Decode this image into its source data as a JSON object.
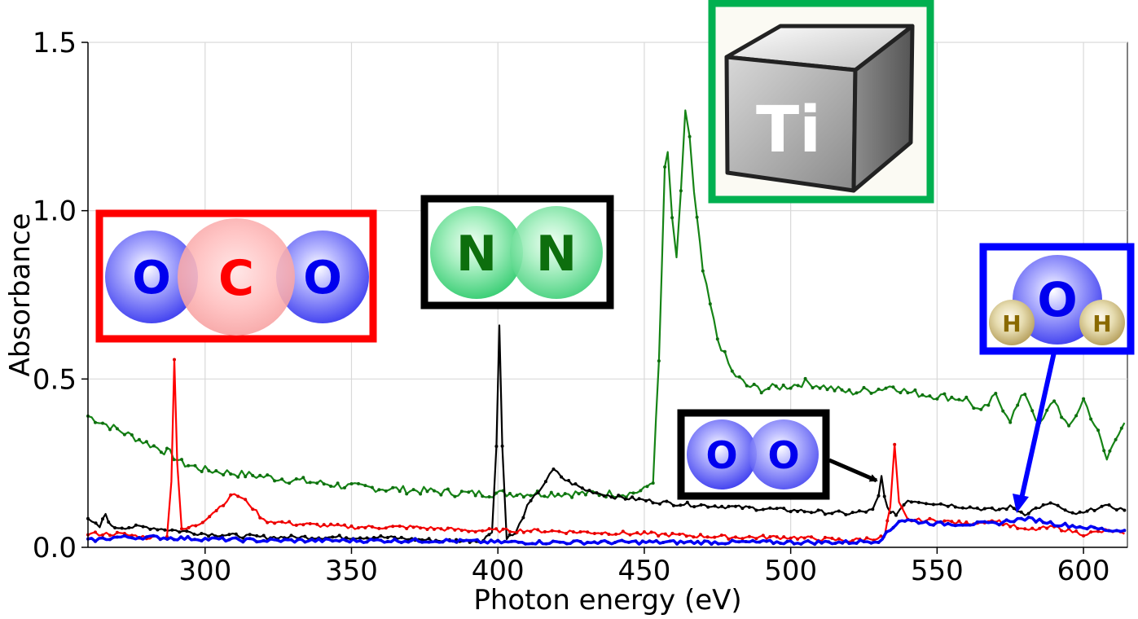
{
  "chart_data": {
    "type": "line",
    "title": "",
    "xlabel": "Photon energy (eV)",
    "ylabel": "Absorbance",
    "xlim": [
      260,
      615
    ],
    "ylim": [
      0.0,
      1.5
    ],
    "xticks": [
      300,
      350,
      400,
      450,
      500,
      550,
      600
    ],
    "yticks": [
      "0.0",
      "0.5",
      "1.0",
      "1.5"
    ],
    "grid": true,
    "legend": "molecule icons",
    "series": [
      {
        "id": "ti",
        "color": "#168416",
        "marker_color": "#0f6f0f",
        "values": [
          [
            260,
            0.39
          ],
          [
            265,
            0.37
          ],
          [
            270,
            0.35
          ],
          [
            275,
            0.33
          ],
          [
            280,
            0.31
          ],
          [
            285,
            0.29
          ],
          [
            288,
            0.28
          ],
          [
            292,
            0.25
          ],
          [
            300,
            0.23
          ],
          [
            310,
            0.22
          ],
          [
            320,
            0.21
          ],
          [
            330,
            0.2
          ],
          [
            350,
            0.18
          ],
          [
            370,
            0.17
          ],
          [
            390,
            0.16
          ],
          [
            410,
            0.16
          ],
          [
            430,
            0.16
          ],
          [
            445,
            0.16
          ],
          [
            450,
            0.17
          ],
          [
            453,
            0.2
          ],
          [
            455,
            0.55
          ],
          [
            457,
            1.12
          ],
          [
            458,
            1.17
          ],
          [
            459.5,
            0.98
          ],
          [
            461,
            0.85
          ],
          [
            462.5,
            1.05
          ],
          [
            464,
            1.3
          ],
          [
            465.5,
            1.22
          ],
          [
            467,
            1.05
          ],
          [
            470,
            0.82
          ],
          [
            475,
            0.62
          ],
          [
            480,
            0.52
          ],
          [
            485,
            0.48
          ],
          [
            490,
            0.47
          ],
          [
            500,
            0.48
          ],
          [
            505,
            0.49
          ],
          [
            510,
            0.48
          ],
          [
            520,
            0.46
          ],
          [
            530,
            0.47
          ],
          [
            535,
            0.48
          ],
          [
            540,
            0.46
          ],
          [
            550,
            0.45
          ],
          [
            560,
            0.44
          ],
          [
            565,
            0.4
          ],
          [
            570,
            0.45
          ],
          [
            575,
            0.38
          ],
          [
            580,
            0.46
          ],
          [
            585,
            0.36
          ],
          [
            590,
            0.44
          ],
          [
            595,
            0.35
          ],
          [
            600,
            0.44
          ],
          [
            605,
            0.34
          ],
          [
            608,
            0.26
          ],
          [
            611,
            0.33
          ],
          [
            614,
            0.37
          ]
        ]
      },
      {
        "id": "n2",
        "color": "#000000",
        "marker_color": "#000000",
        "values": [
          [
            260,
            0.08
          ],
          [
            264,
            0.06
          ],
          [
            266,
            0.1
          ],
          [
            268,
            0.06
          ],
          [
            280,
            0.06
          ],
          [
            290,
            0.05
          ],
          [
            300,
            0.04
          ],
          [
            320,
            0.03
          ],
          [
            340,
            0.03
          ],
          [
            360,
            0.03
          ],
          [
            380,
            0.02
          ],
          [
            395,
            0.02
          ],
          [
            398,
            0.05
          ],
          [
            399.5,
            0.3
          ],
          [
            400.5,
            0.66
          ],
          [
            401.5,
            0.3
          ],
          [
            403,
            0.03
          ],
          [
            406,
            0.04
          ],
          [
            410,
            0.12
          ],
          [
            415,
            0.18
          ],
          [
            419,
            0.23
          ],
          [
            423,
            0.2
          ],
          [
            430,
            0.17
          ],
          [
            440,
            0.15
          ],
          [
            460,
            0.13
          ],
          [
            480,
            0.12
          ],
          [
            500,
            0.11
          ],
          [
            520,
            0.1
          ],
          [
            528,
            0.11
          ],
          [
            530,
            0.15
          ],
          [
            531,
            0.21
          ],
          [
            532,
            0.15
          ],
          [
            534,
            0.1
          ],
          [
            536,
            0.1
          ],
          [
            540,
            0.14
          ],
          [
            550,
            0.13
          ],
          [
            560,
            0.12
          ],
          [
            570,
            0.11
          ],
          [
            575,
            0.12
          ],
          [
            580,
            0.1
          ],
          [
            585,
            0.12
          ],
          [
            590,
            0.13
          ],
          [
            595,
            0.1
          ],
          [
            600,
            0.1
          ],
          [
            605,
            0.12
          ],
          [
            610,
            0.12
          ],
          [
            614,
            0.11
          ]
        ]
      },
      {
        "id": "co2",
        "color": "#ff0000",
        "marker_color": "#e00000",
        "values": [
          [
            260,
            0.04
          ],
          [
            270,
            0.04
          ],
          [
            280,
            0.03
          ],
          [
            287,
            0.03
          ],
          [
            288.5,
            0.2
          ],
          [
            289.5,
            0.56
          ],
          [
            290.5,
            0.25
          ],
          [
            292,
            0.05
          ],
          [
            298,
            0.07
          ],
          [
            305,
            0.12
          ],
          [
            310,
            0.16
          ],
          [
            315,
            0.13
          ],
          [
            320,
            0.08
          ],
          [
            330,
            0.07
          ],
          [
            350,
            0.06
          ],
          [
            370,
            0.06
          ],
          [
            390,
            0.05
          ],
          [
            410,
            0.05
          ],
          [
            450,
            0.04
          ],
          [
            480,
            0.03
          ],
          [
            500,
            0.03
          ],
          [
            520,
            0.02
          ],
          [
            532,
            0.03
          ],
          [
            534,
            0.12
          ],
          [
            535.5,
            0.3
          ],
          [
            537,
            0.13
          ],
          [
            540,
            0.08
          ],
          [
            550,
            0.08
          ],
          [
            560,
            0.07
          ],
          [
            570,
            0.08
          ],
          [
            580,
            0.05
          ],
          [
            590,
            0.06
          ],
          [
            600,
            0.04
          ],
          [
            610,
            0.05
          ],
          [
            614,
            0.04
          ]
        ]
      },
      {
        "id": "h2o",
        "color": "#0000ff",
        "marker_color": "#0000dd",
        "values": [
          [
            260,
            0.02
          ],
          [
            270,
            0.03
          ],
          [
            280,
            0.03
          ],
          [
            300,
            0.025
          ],
          [
            320,
            0.02
          ],
          [
            340,
            0.02
          ],
          [
            360,
            0.02
          ],
          [
            380,
            0.02
          ],
          [
            400,
            0.015
          ],
          [
            420,
            0.015
          ],
          [
            440,
            0.015
          ],
          [
            460,
            0.015
          ],
          [
            480,
            0.015
          ],
          [
            500,
            0.015
          ],
          [
            520,
            0.015
          ],
          [
            530,
            0.02
          ],
          [
            534,
            0.05
          ],
          [
            537,
            0.08
          ],
          [
            540,
            0.08
          ],
          [
            550,
            0.07
          ],
          [
            560,
            0.07
          ],
          [
            570,
            0.07
          ],
          [
            575,
            0.08
          ],
          [
            580,
            0.085
          ],
          [
            585,
            0.08
          ],
          [
            590,
            0.07
          ],
          [
            600,
            0.06
          ],
          [
            610,
            0.05
          ],
          [
            614,
            0.05
          ]
        ]
      }
    ]
  },
  "icons": {
    "co2": {
      "atoms": [
        "O",
        "C",
        "O"
      ],
      "border_color": "#ff0000"
    },
    "n2": {
      "atoms": [
        "N",
        "N"
      ],
      "border_color": "#000000"
    },
    "ti": {
      "label": "Ti",
      "border_color": "#00b050"
    },
    "o2": {
      "atoms": [
        "O",
        "O"
      ],
      "border_color": "#000000"
    },
    "h2o": {
      "atoms": [
        "H",
        "O",
        "H"
      ],
      "border_color": "#0000ff"
    }
  }
}
